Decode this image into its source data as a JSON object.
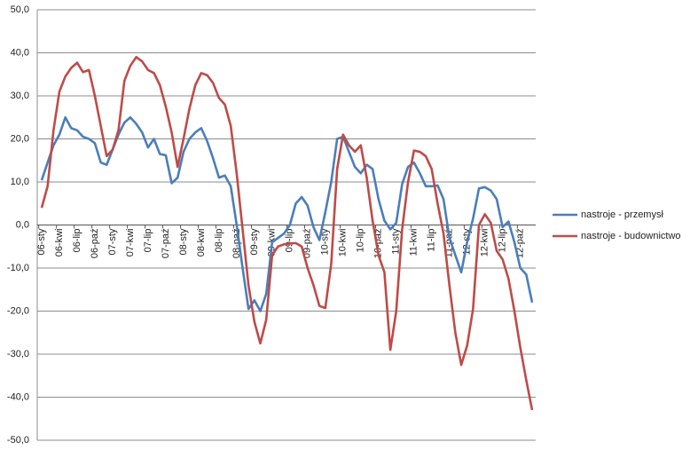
{
  "chart_data": {
    "type": "line",
    "categories": [
      "06-sty",
      null,
      null,
      "06-kwi",
      null,
      null,
      "06-lip",
      null,
      null,
      "06-paź",
      null,
      null,
      "07-sty",
      null,
      null,
      "07-kwi",
      null,
      null,
      "07-lip",
      null,
      null,
      "07-paź",
      null,
      null,
      "08-sty",
      null,
      null,
      "08-kwi",
      null,
      null,
      "08-lip",
      null,
      null,
      "08-paź",
      null,
      null,
      "09-sty",
      null,
      null,
      "09-kwi",
      null,
      null,
      "09-lip",
      null,
      null,
      "09-paź",
      null,
      null,
      "10-sty",
      null,
      null,
      "10-kwi",
      null,
      null,
      "10-lip",
      null,
      null,
      "10-paź",
      null,
      null,
      "11-sty",
      null,
      null,
      "11-kwi",
      null,
      null,
      "11-lip",
      null,
      null,
      "11-paź",
      null,
      null,
      "12-sty",
      null,
      null,
      "12-kwi",
      null,
      null,
      "12-lip",
      null,
      null,
      "12-paź",
      null,
      null
    ],
    "series": [
      {
        "name": "nastroje - przemysł",
        "color": "#4a7ebb",
        "values": [
          10.4,
          14.5,
          18.5,
          21,
          25,
          22.5,
          22,
          20.5,
          20,
          19,
          14.5,
          14,
          17.5,
          21,
          23.8,
          25,
          23.5,
          21.5,
          18,
          20,
          16.5,
          16.2,
          9.7,
          11,
          17,
          20,
          21.5,
          22.5,
          19.5,
          15.5,
          11,
          11.5,
          9,
          0,
          -10,
          -19.5,
          -17.5,
          -20,
          -16,
          -4,
          -3,
          -2,
          0,
          5,
          6.5,
          4.5,
          -0.5,
          -3.5,
          3,
          10,
          20,
          20.5,
          17,
          13.5,
          12,
          14,
          13,
          6,
          1,
          -1,
          0.5,
          9.5,
          13.5,
          14.5,
          12,
          9,
          9,
          9.2,
          6,
          -3,
          -7,
          -11,
          -4,
          1.5,
          8.5,
          8.8,
          8,
          6,
          -0.5,
          0.8,
          -4,
          -10,
          -11.5,
          -18
        ]
      },
      {
        "name": "nastroje - budownictwo",
        "color": "#be4b48",
        "values": [
          4,
          9,
          22,
          31,
          34.5,
          36.5,
          37.7,
          35.5,
          36,
          30,
          23,
          16,
          17.5,
          22,
          33.5,
          37,
          39,
          38,
          36,
          35.3,
          32.5,
          27.5,
          21.5,
          13.5,
          20,
          27,
          32.5,
          35.3,
          34.8,
          33,
          29.5,
          28,
          23,
          12,
          -1,
          -14,
          -22.5,
          -27.5,
          -22,
          -7,
          -5,
          -4.5,
          -4.3,
          -4.2,
          -5,
          -10,
          -14,
          -18.8,
          -19.3,
          -9,
          13,
          21,
          18.5,
          17,
          18.5,
          11,
          1,
          -7,
          -11,
          -29,
          -20,
          -1,
          10,
          17.3,
          17,
          16,
          13,
          5,
          -2,
          -14,
          -25,
          -32.5,
          -28,
          -19.5,
          0,
          2.5,
          0.5,
          -6,
          -8,
          -12.5,
          -20,
          -28.5,
          -36,
          -43
        ]
      }
    ],
    "ylim": [
      -50,
      50
    ],
    "yticks": [
      {
        "value": -50,
        "label": "-50,0"
      },
      {
        "value": -40,
        "label": "-40,0"
      },
      {
        "value": -30,
        "label": "-30,0"
      },
      {
        "value": -20,
        "label": "-20,0"
      },
      {
        "value": -10,
        "label": "-10,0"
      },
      {
        "value": 0,
        "label": "0,0"
      },
      {
        "value": 10,
        "label": "10,0"
      },
      {
        "value": 20,
        "label": "20,0"
      },
      {
        "value": 30,
        "label": "30,0"
      },
      {
        "value": 40,
        "label": "40,0"
      },
      {
        "value": 50,
        "label": "50,0"
      }
    ],
    "grid": true,
    "legend": "right"
  }
}
